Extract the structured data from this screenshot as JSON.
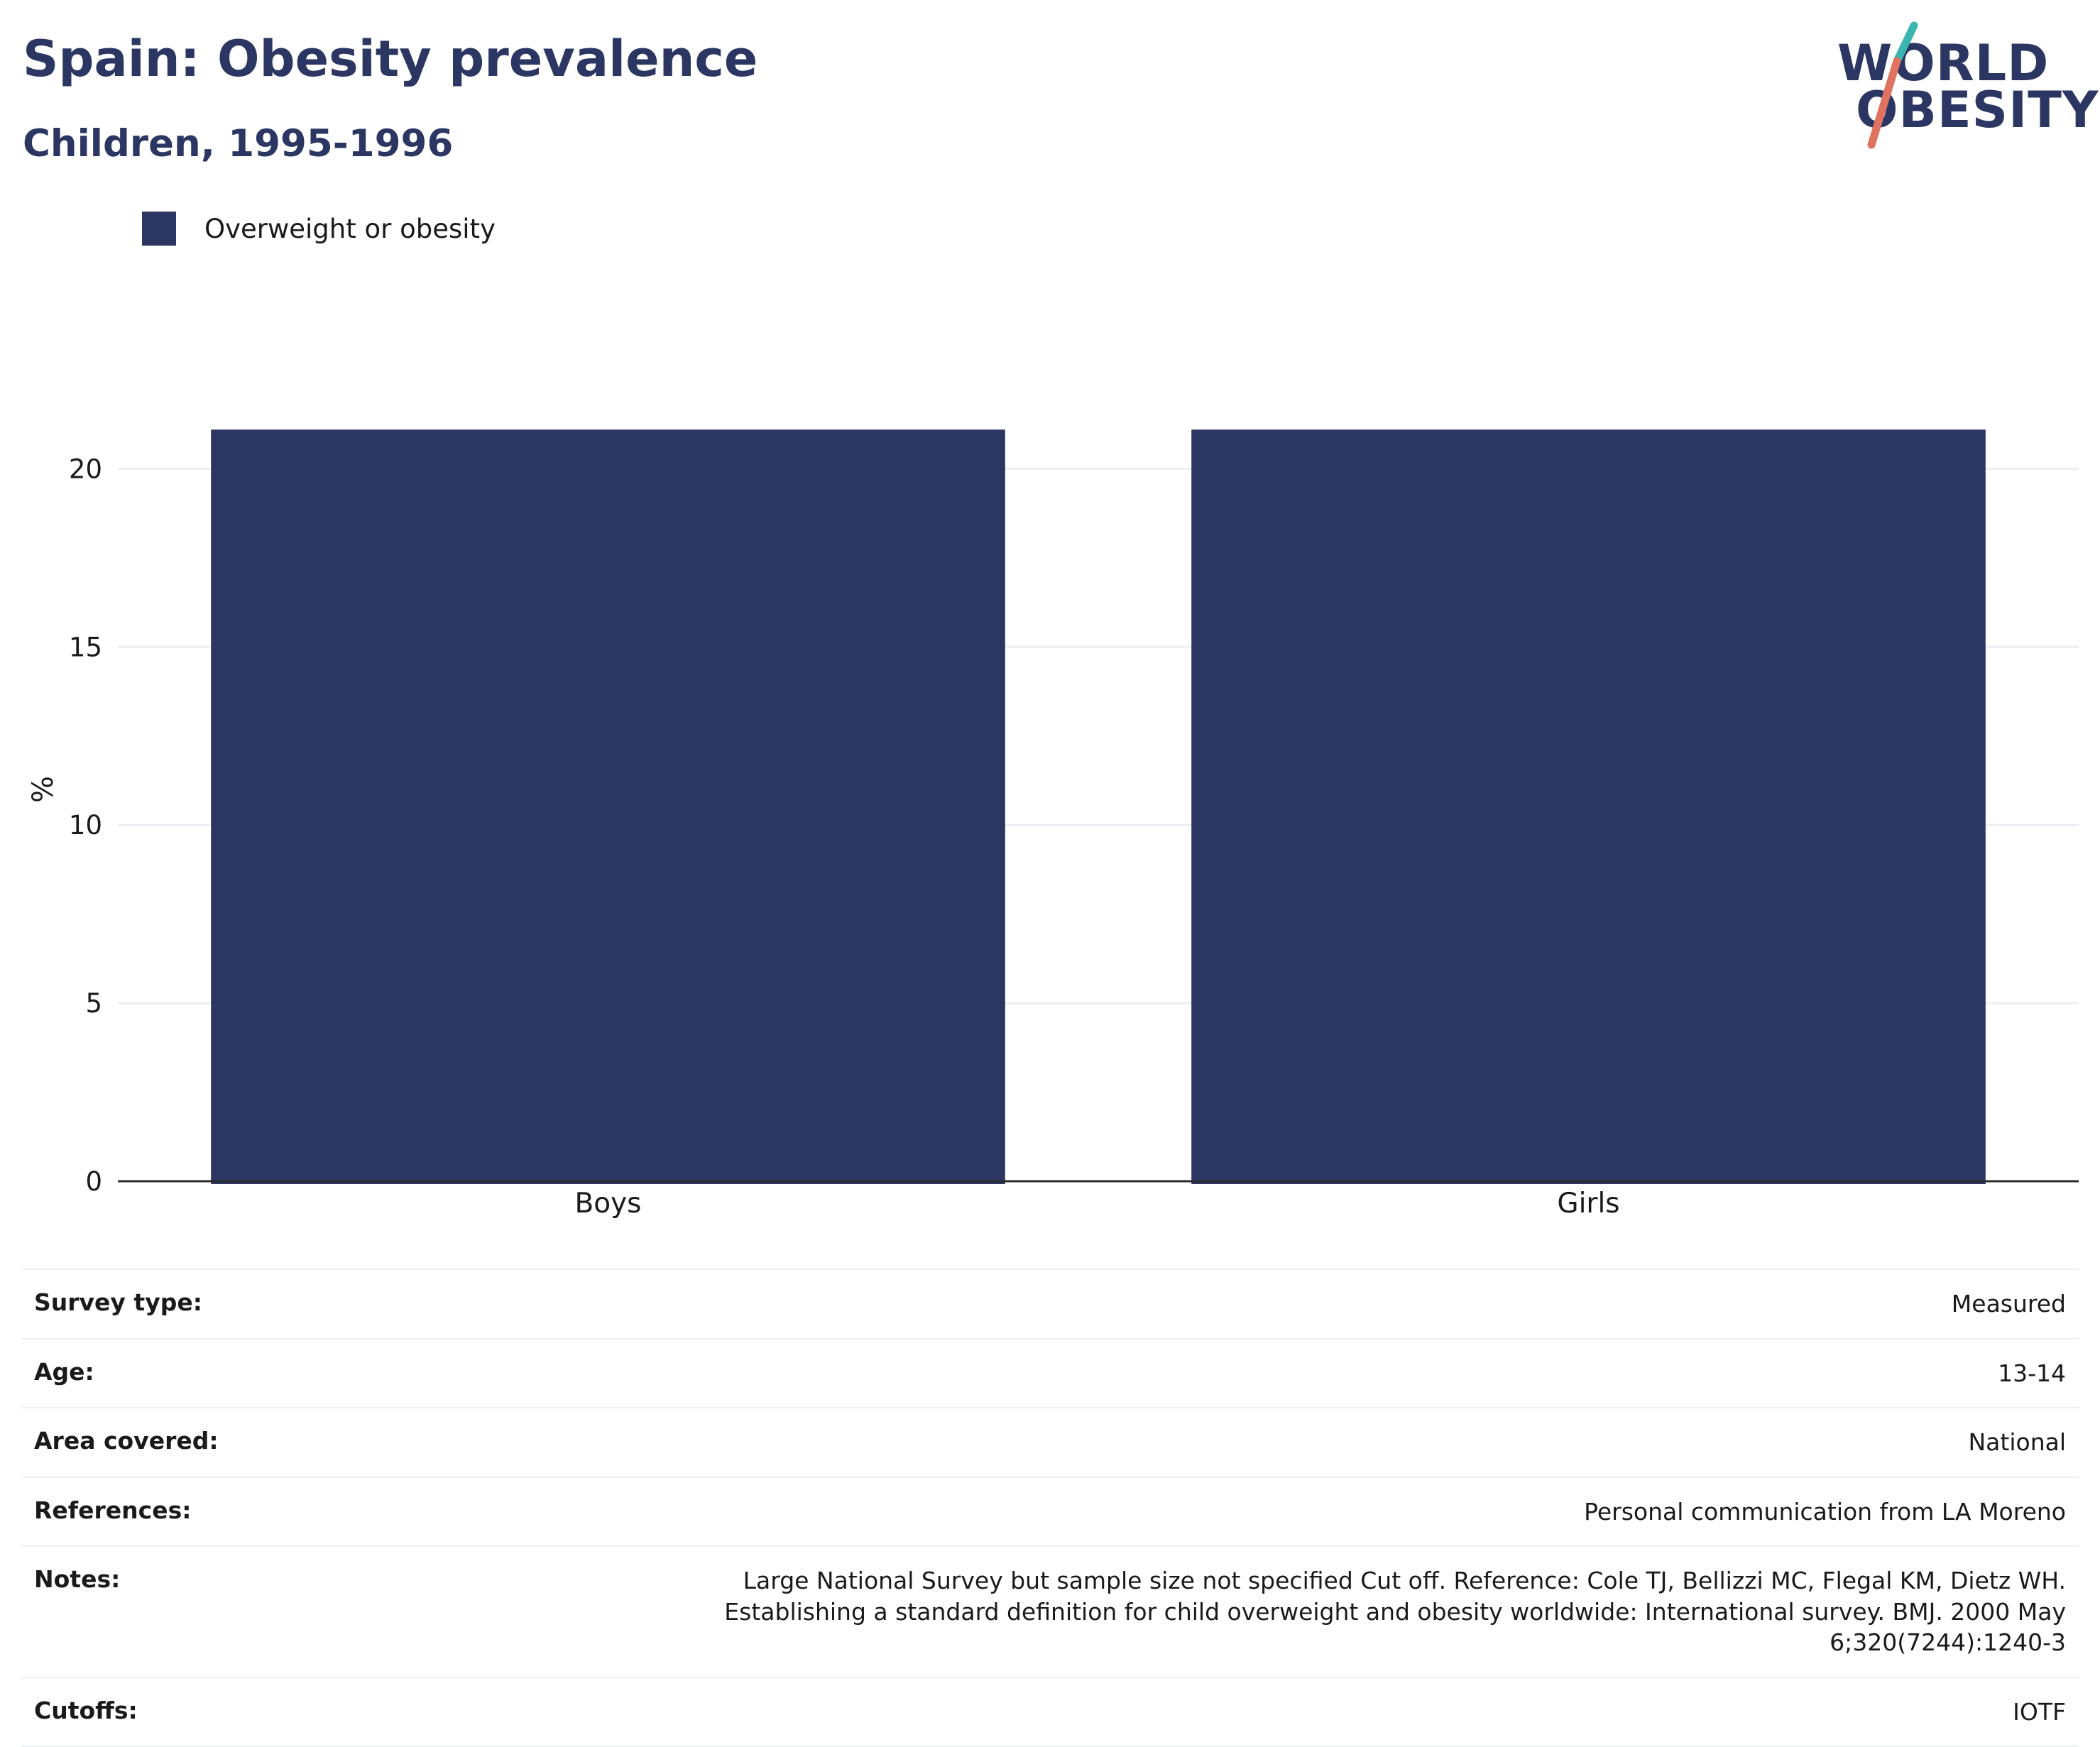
{
  "header": {
    "title": "Spain: Obesity prevalence",
    "subtitle": "Children, 1995-1996"
  },
  "logo": {
    "line1": "WORLD",
    "line2": "OBESITY",
    "accent_teal": "#3bb5b0",
    "accent_coral": "#e0735f"
  },
  "colors": {
    "bar": "#2b3663",
    "grid": "#eceef2",
    "axis": "#2b2b2b"
  },
  "chart_data": {
    "type": "bar",
    "categories": [
      "Boys",
      "Girls"
    ],
    "series": [
      {
        "name": "Overweight or obesity",
        "values": [
          21.1,
          21.1
        ]
      }
    ],
    "ylabel": "%",
    "xlabel": "",
    "ylim": [
      0,
      22
    ],
    "yticks": [
      0,
      5,
      10,
      15,
      20
    ],
    "grid": true,
    "legend": "top-left"
  },
  "info": [
    {
      "key": "Survey type:",
      "value": "Measured"
    },
    {
      "key": "Age:",
      "value": "13-14"
    },
    {
      "key": "Area covered:",
      "value": "National"
    },
    {
      "key": "References:",
      "value": "Personal communication from LA Moreno"
    },
    {
      "key": "Notes:",
      "value": "Large National Survey but sample size not specified Cut off. Reference: Cole TJ, Bellizzi MC, Flegal KM, Dietz WH. Establishing a standard definition for child overweight and obesity worldwide: International survey. BMJ. 2000 May 6;320(7244):1240-3"
    },
    {
      "key": "Cutoffs:",
      "value": "IOTF"
    }
  ]
}
